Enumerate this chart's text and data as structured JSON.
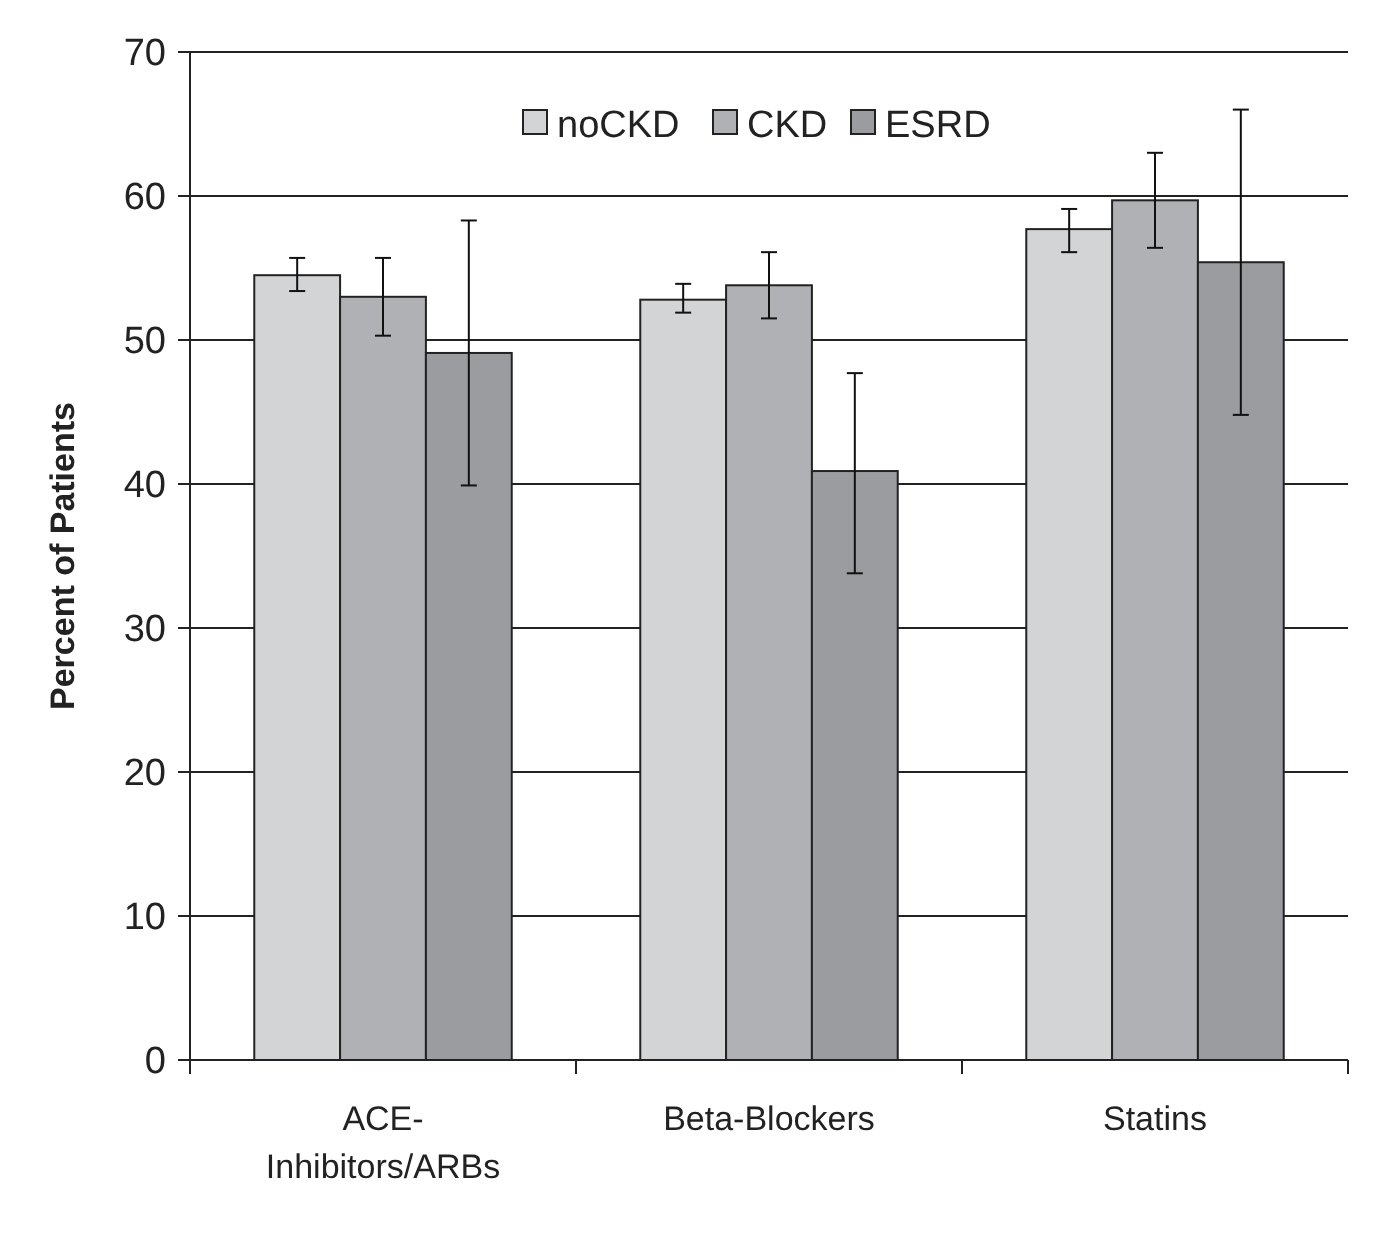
{
  "chart_data": {
    "type": "bar",
    "ylabel": "Percent of Patients",
    "categories": [
      "ACE-Inhibitors/ARBs",
      "Beta-Blockers",
      "Statins"
    ],
    "series": [
      {
        "name": "noCKD",
        "color": "#d3d4d6",
        "values": [
          54.5,
          52.8,
          57.7
        ],
        "errors": [
          [
            53.4,
            55.7
          ],
          [
            51.9,
            53.9
          ],
          [
            56.1,
            59.1
          ]
        ]
      },
      {
        "name": "CKD",
        "color": "#b0b1b5",
        "values": [
          53.0,
          53.8,
          59.7
        ],
        "errors": [
          [
            50.3,
            55.7
          ],
          [
            51.5,
            56.1
          ],
          [
            56.4,
            63.0
          ]
        ]
      },
      {
        "name": "ESRD",
        "color": "#9b9ca0",
        "values": [
          49.1,
          40.9,
          55.4
        ],
        "errors": [
          [
            39.9,
            58.3
          ],
          [
            33.8,
            47.7
          ],
          [
            44.8,
            66.0
          ]
        ]
      }
    ],
    "ylim": [
      0,
      70
    ],
    "yticks": [
      0,
      10,
      20,
      30,
      40,
      50,
      60,
      70
    ],
    "grid": "y",
    "legend": "top"
  }
}
